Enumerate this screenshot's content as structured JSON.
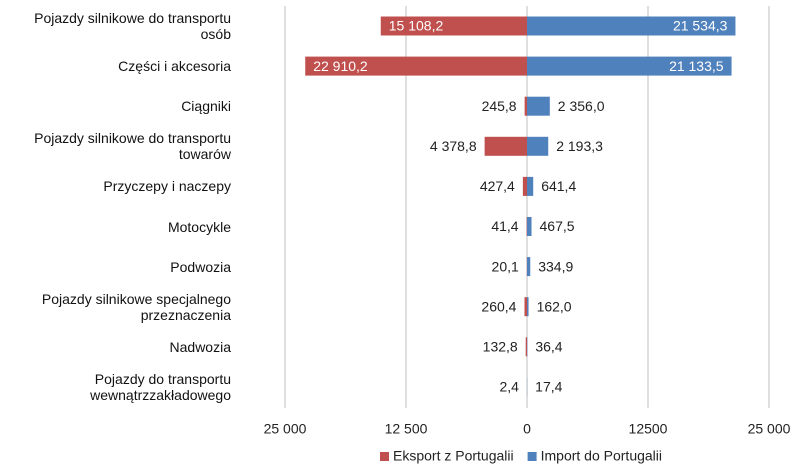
{
  "chart_data": {
    "type": "butterfly-bar",
    "categories": [
      "Pojazdy silnikowe do transportu osób",
      "Części i akcesoria",
      "Ciągniki",
      "Pojazdy silnikowe do transportu towarów",
      "Przyczepy i naczepy",
      "Motocykle",
      "Podwozia",
      "Pojazdy silnikowe specjalnego przeznaczenia",
      "Nadwozia",
      "Pojazdy do transportu wewnątrzzakładowego"
    ],
    "series": [
      {
        "name": "Eksport z Portugalii",
        "color": "#c0504d",
        "values": [
          -15108.2,
          -22910.2,
          -245.8,
          -4378.8,
          -427.4,
          -41.4,
          -20.1,
          -260.4,
          -132.8,
          -2.4
        ],
        "value_labels": [
          "15 108,2",
          "22 910,2",
          "245,8",
          "4 378,8",
          "427,4",
          "41,4",
          "20,1",
          "260,4",
          "132,8",
          "2,4"
        ]
      },
      {
        "name": "Import do Portugalii",
        "color": "#4f81bd",
        "values": [
          21534.3,
          21133.5,
          2356.0,
          2193.3,
          641.4,
          467.5,
          334.9,
          162.0,
          36.4,
          17.4
        ],
        "value_labels": [
          "21 534,3",
          "21 133,5",
          "2 356,0",
          "2 193,3",
          "641,4",
          "467,5",
          "334,9",
          "162,0",
          "36,4",
          "17,4"
        ]
      }
    ],
    "xlim": [
      -25000,
      25000
    ],
    "xticks": [
      {
        "value": -25000,
        "label": "25 000"
      },
      {
        "value": -12500,
        "label": "12 500"
      },
      0,
      12500,
      {
        "value": 25000,
        "label": "25 000"
      }
    ],
    "grid": true,
    "legend": "bottom"
  }
}
